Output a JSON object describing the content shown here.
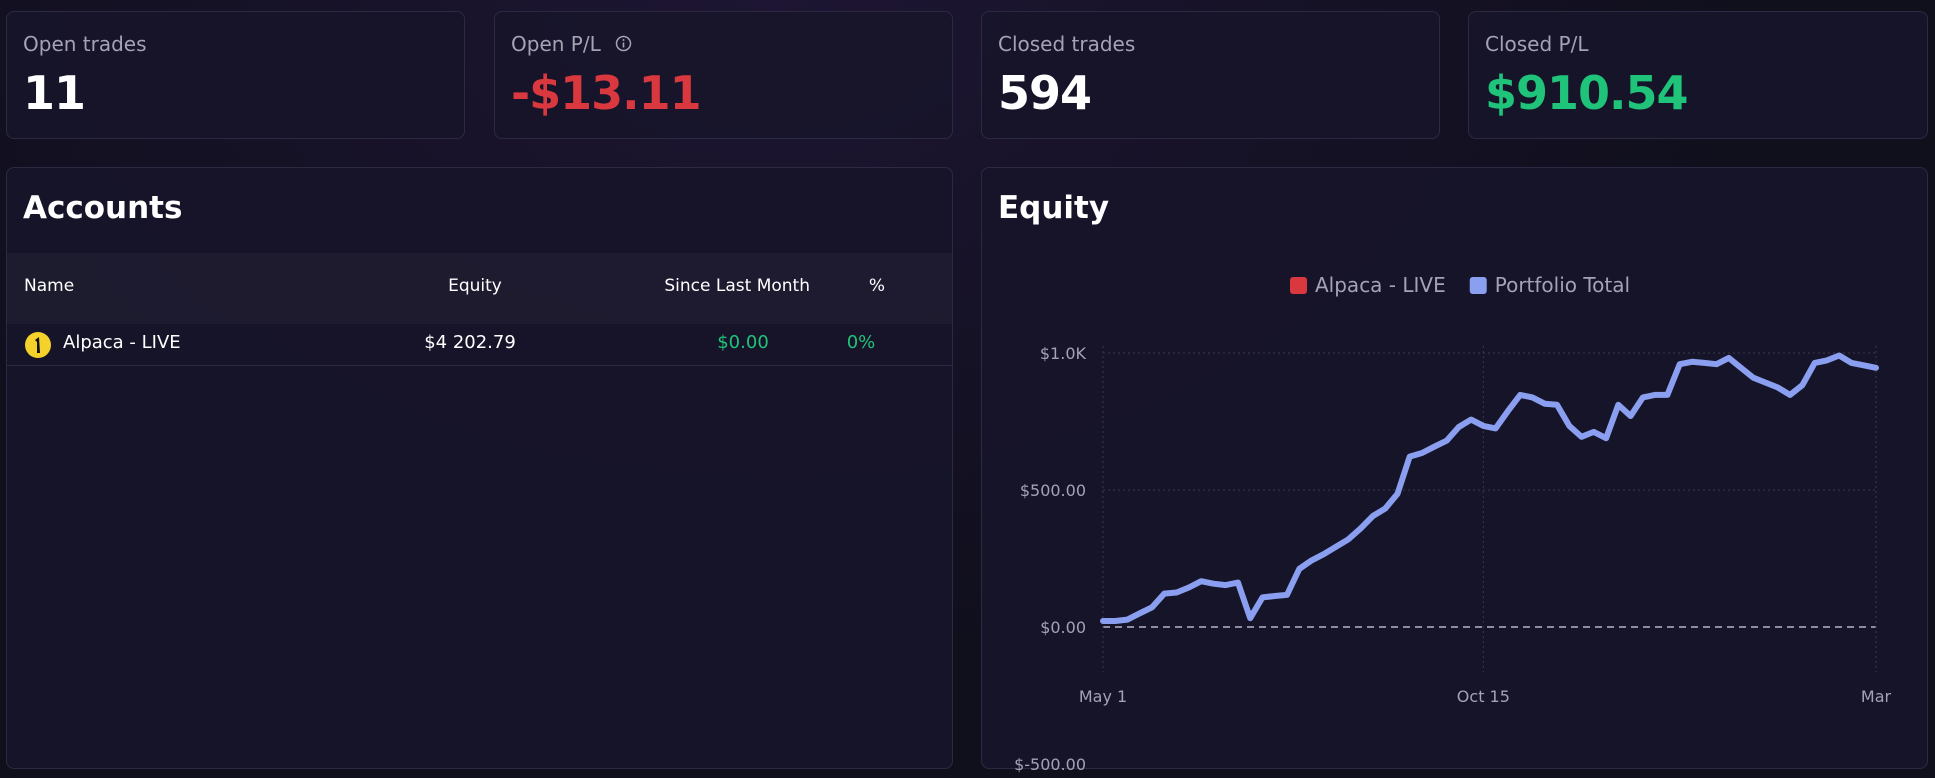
{
  "stats": [
    {
      "label": "Open trades",
      "value": "11"
    },
    {
      "label": "Open P/L",
      "value": "-$13.11"
    },
    {
      "label": "Closed trades",
      "value": "594"
    },
    {
      "label": "Closed P/L",
      "value": "$910.54"
    }
  ],
  "accounts": {
    "title": "Accounts",
    "columns": [
      "Name",
      "Equity",
      "Since Last Month",
      "%"
    ],
    "rows": [
      [
        "Alpaca - LIVE",
        "$4 202.79",
        "$0.00",
        "0%"
      ]
    ]
  },
  "chart_data": {
    "type": "line",
    "title": "Equity",
    "categories": [
      "May 1",
      null,
      null,
      null,
      null,
      null,
      null,
      null,
      null,
      null,
      null,
      null,
      null,
      null,
      null,
      null,
      null,
      null,
      null,
      null,
      null,
      null,
      null,
      null,
      null,
      null,
      null,
      null,
      null,
      null,
      null,
      "Oct 15",
      null,
      null,
      null,
      null,
      null,
      null,
      null,
      null,
      null,
      null,
      null,
      null,
      null,
      null,
      null,
      null,
      null,
      null,
      null,
      null,
      null,
      null,
      null,
      null,
      null,
      null,
      null,
      null,
      null,
      null,
      null,
      "Mar"
    ],
    "series": [
      {
        "name": "Alpaca - LIVE",
        "color": "#d9393e"
      },
      {
        "name": "Portfolio Total",
        "color": "#8a9ff0",
        "values": [
          22,
          22,
          27,
          50,
          72,
          122,
          126,
          144,
          167,
          158,
          153,
          162,
          32,
          108,
          113,
          117,
          212,
          243,
          266,
          293,
          320,
          360,
          405,
          432,
          486,
          622,
          635,
          658,
          680,
          730,
          757,
          734,
          725,
          788,
          847,
          838,
          815,
          811,
          734,
          694,
          712,
          689,
          811,
          770,
          838,
          847,
          847,
          959,
          968,
          964,
          959,
          982,
          946,
          910,
          892,
          874,
          847,
          883,
          964,
          973,
          991,
          964,
          955,
          946
        ]
      }
    ],
    "ylim": [
      -500,
      1000
    ],
    "yticks": [
      {
        "value": -500,
        "label": "$-500.00"
      },
      {
        "value": 0,
        "label": "$0.00"
      },
      {
        "value": 500,
        "label": "$500.00"
      },
      {
        "value": 1000,
        "label": "$1.0K"
      }
    ],
    "grid": true
  }
}
